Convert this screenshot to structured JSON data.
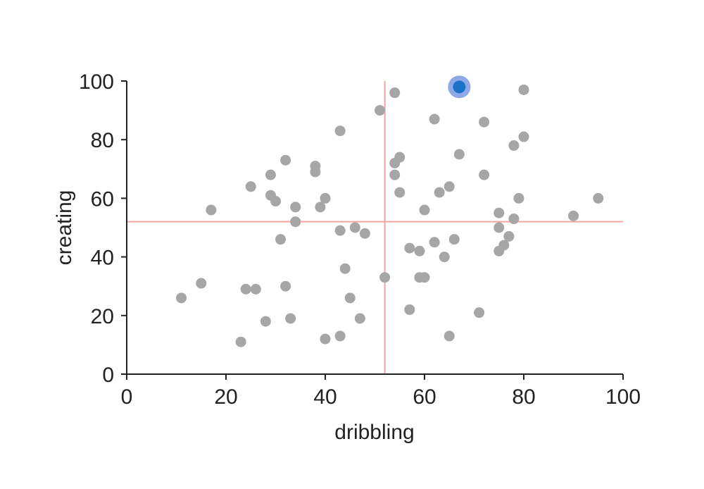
{
  "chart_data": {
    "type": "scatter",
    "xlabel": "dribbling",
    "ylabel": "creating",
    "xlim": [
      0,
      100
    ],
    "ylim": [
      0,
      100
    ],
    "xticks": [
      "0",
      "20",
      "40",
      "60",
      "80",
      "100"
    ],
    "yticks": [
      "0",
      "20",
      "40",
      "60",
      "80",
      "100"
    ],
    "grid": false,
    "reference_lines": {
      "x": 52,
      "y": 52,
      "color": "#f4a3a3"
    },
    "point_color": "#a6a6a6",
    "highlight_color": "#1a73c8",
    "highlight_ring_color": "#8fa9e6",
    "highlighted_point": {
      "x": 67,
      "y": 98
    },
    "points": [
      {
        "x": 11,
        "y": 26
      },
      {
        "x": 15,
        "y": 31
      },
      {
        "x": 17,
        "y": 56
      },
      {
        "x": 23,
        "y": 11
      },
      {
        "x": 24,
        "y": 29
      },
      {
        "x": 25,
        "y": 64
      },
      {
        "x": 26,
        "y": 29
      },
      {
        "x": 28,
        "y": 18
      },
      {
        "x": 29,
        "y": 68
      },
      {
        "x": 29,
        "y": 61
      },
      {
        "x": 30,
        "y": 59
      },
      {
        "x": 31,
        "y": 46
      },
      {
        "x": 32,
        "y": 73
      },
      {
        "x": 32,
        "y": 30
      },
      {
        "x": 33,
        "y": 19
      },
      {
        "x": 34,
        "y": 57
      },
      {
        "x": 34,
        "y": 52
      },
      {
        "x": 38,
        "y": 71
      },
      {
        "x": 38,
        "y": 69
      },
      {
        "x": 39,
        "y": 57
      },
      {
        "x": 40,
        "y": 60
      },
      {
        "x": 40,
        "y": 12
      },
      {
        "x": 43,
        "y": 83
      },
      {
        "x": 43,
        "y": 49
      },
      {
        "x": 43,
        "y": 13
      },
      {
        "x": 44,
        "y": 36
      },
      {
        "x": 45,
        "y": 26
      },
      {
        "x": 46,
        "y": 50
      },
      {
        "x": 47,
        "y": 19
      },
      {
        "x": 48,
        "y": 48
      },
      {
        "x": 51,
        "y": 90
      },
      {
        "x": 52,
        "y": 33
      },
      {
        "x": 54,
        "y": 96
      },
      {
        "x": 54,
        "y": 72
      },
      {
        "x": 54,
        "y": 68
      },
      {
        "x": 55,
        "y": 74
      },
      {
        "x": 55,
        "y": 62
      },
      {
        "x": 57,
        "y": 43
      },
      {
        "x": 57,
        "y": 22
      },
      {
        "x": 59,
        "y": 42
      },
      {
        "x": 59,
        "y": 33
      },
      {
        "x": 60,
        "y": 56
      },
      {
        "x": 60,
        "y": 33
      },
      {
        "x": 62,
        "y": 87
      },
      {
        "x": 62,
        "y": 45
      },
      {
        "x": 63,
        "y": 62
      },
      {
        "x": 64,
        "y": 40
      },
      {
        "x": 65,
        "y": 64
      },
      {
        "x": 65,
        "y": 13
      },
      {
        "x": 66,
        "y": 46
      },
      {
        "x": 67,
        "y": 75
      },
      {
        "x": 71,
        "y": 21
      },
      {
        "x": 72,
        "y": 86
      },
      {
        "x": 72,
        "y": 68
      },
      {
        "x": 75,
        "y": 55
      },
      {
        "x": 75,
        "y": 50
      },
      {
        "x": 75,
        "y": 42
      },
      {
        "x": 76,
        "y": 44
      },
      {
        "x": 77,
        "y": 47
      },
      {
        "x": 78,
        "y": 78
      },
      {
        "x": 78,
        "y": 53
      },
      {
        "x": 79,
        "y": 60
      },
      {
        "x": 80,
        "y": 97
      },
      {
        "x": 80,
        "y": 81
      },
      {
        "x": 90,
        "y": 54
      },
      {
        "x": 95,
        "y": 60
      }
    ]
  }
}
